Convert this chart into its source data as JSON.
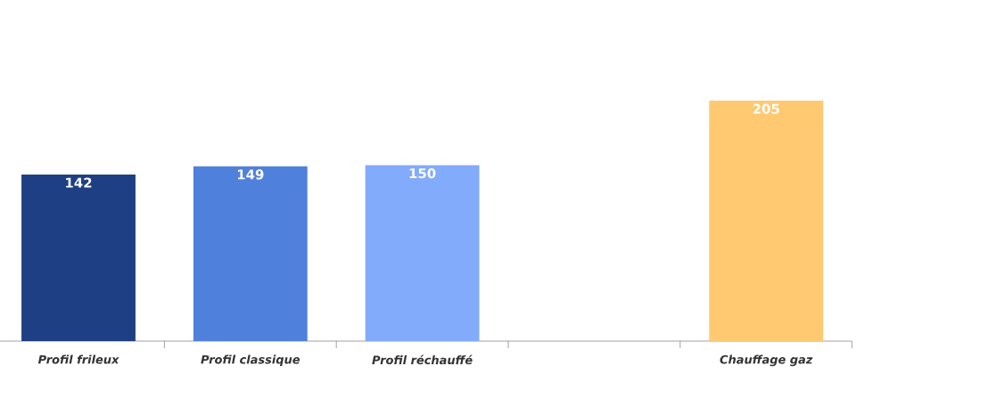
{
  "chart_data": {
    "type": "bar",
    "categories": [
      "Profil frileux",
      "Profil classique",
      "Profil réchauffé",
      null,
      "Chauffage gaz"
    ],
    "values": [
      142,
      149,
      150,
      null,
      205
    ],
    "colors": [
      "#1f3f84",
      "#4f81dc",
      "#82abfb",
      null,
      "#ffc972"
    ],
    "data_labels": true
  }
}
